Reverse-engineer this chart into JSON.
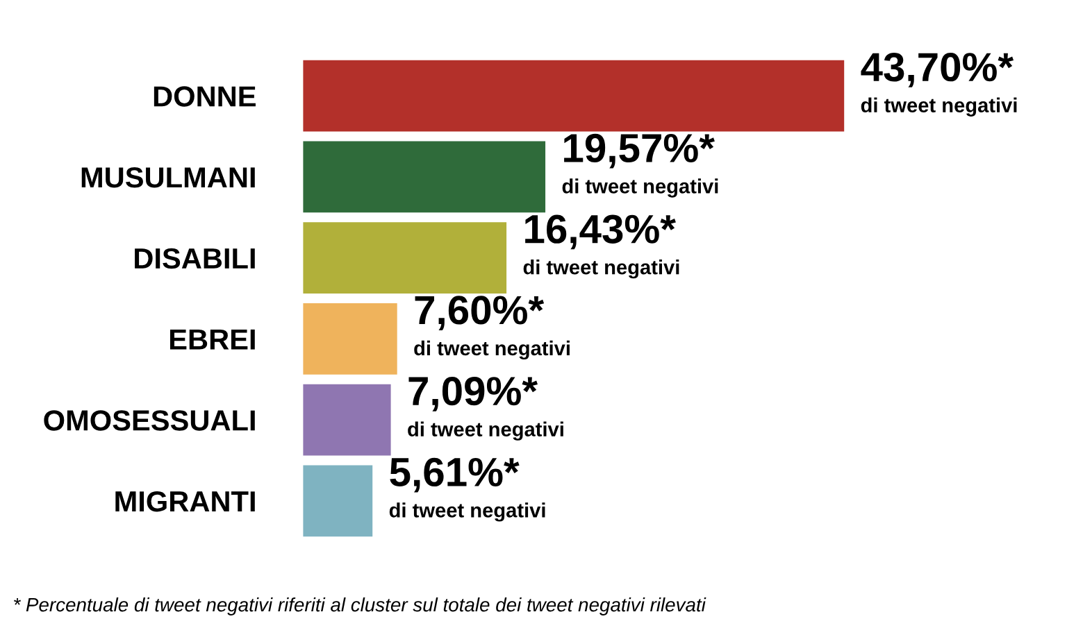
{
  "chart_data": {
    "type": "bar",
    "orientation": "horizontal",
    "categories": [
      "DONNE",
      "MUSULMANI",
      "DISABILI",
      "EBREI",
      "OMOSESSUALI",
      "MIGRANTI"
    ],
    "values": [
      43.7,
      19.57,
      16.43,
      7.6,
      7.09,
      5.61
    ],
    "colors": [
      "#b3302a",
      "#2f6b3a",
      "#b1b03a",
      "#efb35c",
      "#8f76b1",
      "#7fb3c1"
    ],
    "value_labels": [
      "43,70%*\ndi tweet negativi",
      "19,57%*\ndi tweet negativi",
      "16,43%*\ndi tweet negativi",
      "7,60%*\ndi tweet negativi",
      "7,09%*\ndi tweet negativi",
      "5,61%*\ndi tweet negativi"
    ],
    "annotations": [
      "* Percentuale di tweet negativi riferiti al cluster sul totale dei tweet negativi rilevati"
    ],
    "grid": false,
    "legend": false
  }
}
